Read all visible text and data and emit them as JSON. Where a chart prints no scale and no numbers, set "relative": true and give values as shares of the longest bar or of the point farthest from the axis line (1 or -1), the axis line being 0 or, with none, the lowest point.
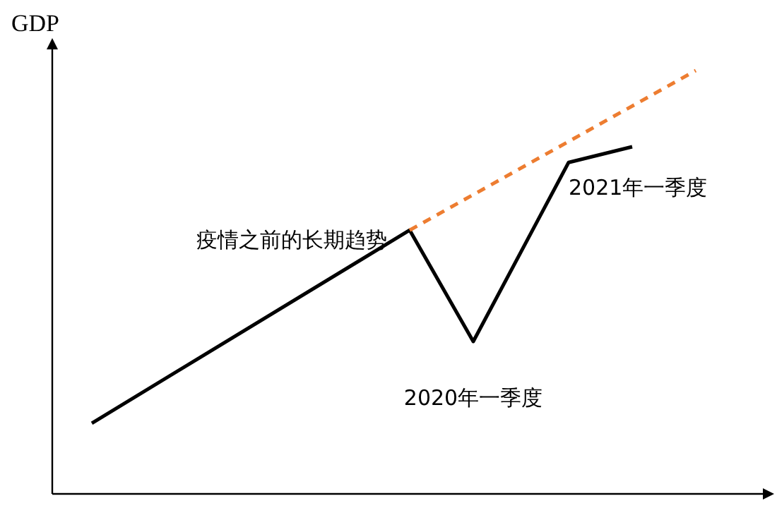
{
  "chart_data": {
    "type": "line",
    "relative": true,
    "ylabel": "GDP",
    "marker": "none",
    "categories": [
      null,
      null,
      null,
      null,
      null,
      null,
      null,
      null,
      null,
      null,
      null,
      null,
      null,
      null,
      null,
      null,
      null,
      null,
      null,
      null
    ],
    "series": [
      {
        "color": "#000000",
        "line_style": "solid",
        "values": [
          0.167,
          null,
          null,
          null,
          null,
          null,
          null,
          null,
          null,
          null,
          0.623,
          null,
          0.36,
          null,
          null,
          0.783,
          null,
          0.82,
          null,
          null
        ]
      },
      {
        "color": "#ed7d31",
        "line_style": "dashed",
        "values": [
          null,
          null,
          null,
          null,
          null,
          null,
          null,
          null,
          null,
          null,
          0.623,
          null,
          null,
          null,
          null,
          null,
          null,
          null,
          null,
          1
        ]
      }
    ],
    "annotations": [
      "疫情之前的长期趋势",
      "2020年一季度",
      "2021年一季度"
    ]
  }
}
